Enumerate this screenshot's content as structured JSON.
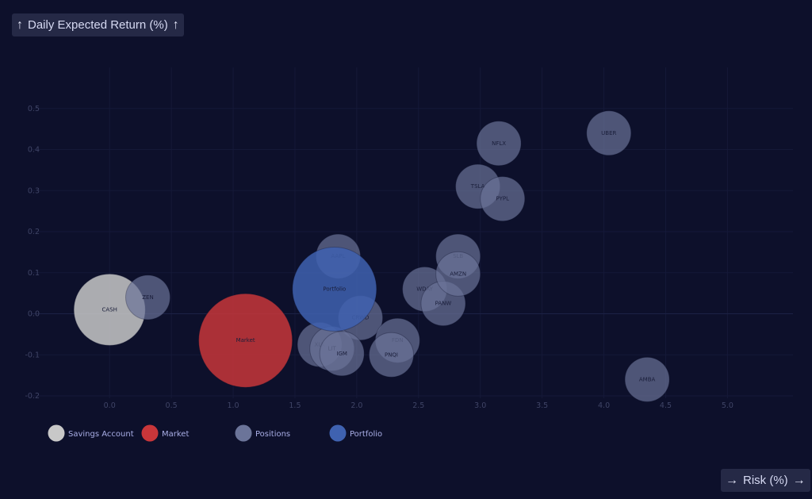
{
  "y_axis_button": {
    "label": "Daily Expected Return (%)",
    "icon": "arrow-up-icon"
  },
  "x_axis_button": {
    "label": "Risk (%)",
    "icon": "arrow-right-icon"
  },
  "chart_data": {
    "type": "scatter",
    "variant": "bubble",
    "xlabel": "Risk (%)",
    "ylabel": "Daily Expected Return (%)",
    "xlim": [
      -0.63,
      5.53
    ],
    "ylim": [
      -0.225,
      0.6
    ],
    "x_ticks": [
      "0.0",
      "0.5",
      "1.0",
      "1.5",
      "2.0",
      "2.5",
      "3.0",
      "3.5",
      "4.0",
      "4.5",
      "5.0"
    ],
    "y_ticks": [
      "0.5",
      "0.4",
      "0.3",
      "0.2",
      "0.1",
      "0.0",
      "-0.1",
      "-0.2"
    ],
    "grid": true,
    "legend_position": "bottom-left",
    "series": [
      {
        "name": "Savings Account",
        "color": "#c8c8c8",
        "points": [
          {
            "label": "CASH",
            "x": 0.0,
            "y": 0.01,
            "size": 45
          }
        ]
      },
      {
        "name": "Market",
        "color": "#c8363a",
        "points": [
          {
            "label": "Market",
            "x": 1.1,
            "y": -0.065,
            "size": 59
          }
        ]
      },
      {
        "name": "Positions",
        "color": "#6b7499",
        "points": [
          {
            "label": "ZEN",
            "x": 0.31,
            "y": 0.04,
            "size": 28
          },
          {
            "label": "AAPL",
            "x": 1.85,
            "y": 0.14,
            "size": 28
          },
          {
            "label": "CRWD",
            "x": 2.03,
            "y": -0.01,
            "size": 28
          },
          {
            "label": "XLK",
            "x": 1.7,
            "y": -0.075,
            "size": 28
          },
          {
            "label": "LIT",
            "x": 1.8,
            "y": -0.085,
            "size": 28
          },
          {
            "label": "IGM",
            "x": 1.88,
            "y": -0.097,
            "size": 28
          },
          {
            "label": "FDN",
            "x": 2.33,
            "y": -0.065,
            "size": 28
          },
          {
            "label": "PNQI",
            "x": 2.28,
            "y": -0.1,
            "size": 28
          },
          {
            "label": "WDAY",
            "x": 2.55,
            "y": 0.06,
            "size": 28
          },
          {
            "label": "PANW",
            "x": 2.7,
            "y": 0.025,
            "size": 28
          },
          {
            "label": "SLB",
            "x": 2.82,
            "y": 0.14,
            "size": 28
          },
          {
            "label": "AMZN",
            "x": 2.82,
            "y": 0.097,
            "size": 28
          },
          {
            "label": "TSLA",
            "x": 2.98,
            "y": 0.31,
            "size": 28
          },
          {
            "label": "PYPL",
            "x": 3.18,
            "y": 0.28,
            "size": 28
          },
          {
            "label": "NFLX",
            "x": 3.15,
            "y": 0.415,
            "size": 28
          },
          {
            "label": "UBER",
            "x": 4.04,
            "y": 0.44,
            "size": 28
          },
          {
            "label": "AMBA",
            "x": 4.35,
            "y": -0.16,
            "size": 28
          }
        ]
      },
      {
        "name": "Portfolio",
        "color": "#3f62b0",
        "points": [
          {
            "label": "Portfolio",
            "x": 1.82,
            "y": 0.06,
            "size": 53
          }
        ]
      }
    ]
  }
}
